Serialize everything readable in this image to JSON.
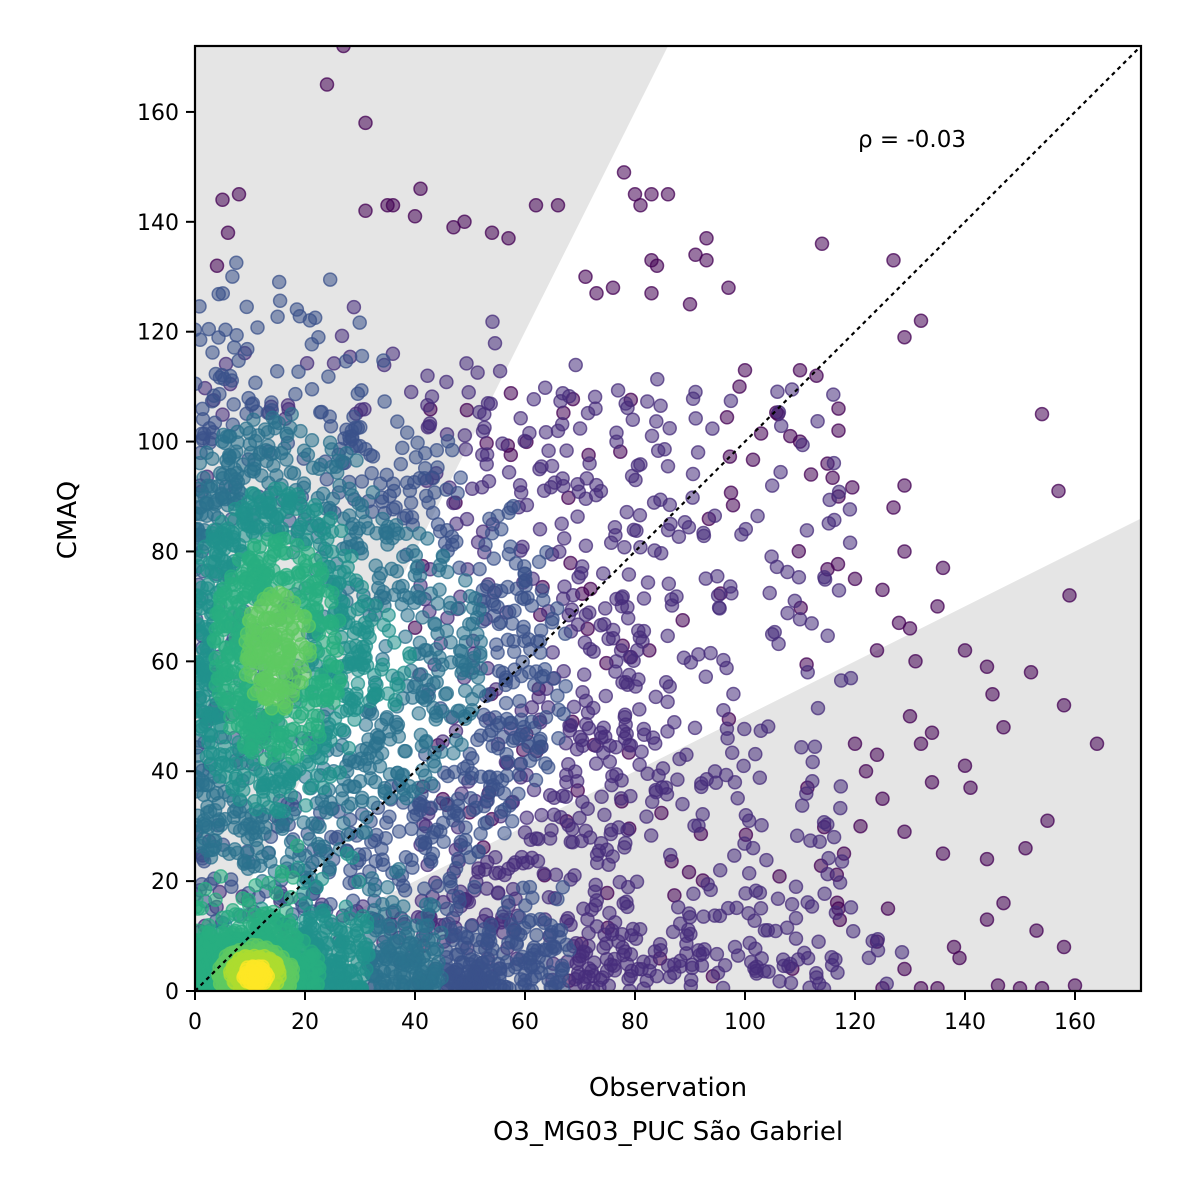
{
  "chart_data": {
    "type": "scatter",
    "xlabel": "Observation",
    "xlabel_sub": "O3_MG03_PUC São Gabriel",
    "ylabel": "CMAQ",
    "xlim": [
      0,
      172
    ],
    "ylim": [
      0,
      172
    ],
    "x_ticks": [
      0,
      20,
      40,
      60,
      80,
      100,
      120,
      140,
      160
    ],
    "y_ticks": [
      0,
      20,
      40,
      60,
      80,
      100,
      120,
      140,
      160
    ],
    "annotation": "ρ = -0.03",
    "reference_line": "y = x (dotted)",
    "shaded_regions": "outside factor-of-2 band (y > 2x and y < 0.5x)",
    "colormap": "viridis by point density",
    "colors": {
      "low_density": "#440154",
      "mid_low": "#3b528b",
      "mid": "#21918c",
      "mid_high": "#5ec962",
      "high_density": "#fde725",
      "shade": "#e5e5e5"
    },
    "outlier_points": [
      [
        27,
        172
      ],
      [
        24,
        165
      ],
      [
        31,
        158
      ],
      [
        31,
        142
      ],
      [
        35,
        143
      ],
      [
        36,
        143
      ],
      [
        41,
        146
      ],
      [
        40,
        141
      ],
      [
        8,
        145
      ],
      [
        5,
        144
      ],
      [
        6,
        138
      ],
      [
        4,
        132
      ],
      [
        47,
        139
      ],
      [
        49,
        140
      ],
      [
        54,
        138
      ],
      [
        57,
        137
      ],
      [
        62,
        143
      ],
      [
        66,
        143
      ],
      [
        78,
        149
      ],
      [
        80,
        145
      ],
      [
        83,
        145
      ],
      [
        86,
        145
      ],
      [
        81,
        143
      ],
      [
        93,
        137
      ],
      [
        91,
        134
      ],
      [
        93,
        133
      ],
      [
        83,
        133
      ],
      [
        84,
        132
      ],
      [
        76,
        128
      ],
      [
        71,
        130
      ],
      [
        73,
        127
      ],
      [
        97,
        128
      ],
      [
        83,
        127
      ],
      [
        90,
        125
      ],
      [
        114,
        136
      ],
      [
        127,
        133
      ],
      [
        132,
        122
      ],
      [
        129,
        119
      ],
      [
        110,
        113
      ],
      [
        113,
        112
      ],
      [
        100,
        113
      ],
      [
        99,
        110
      ],
      [
        117,
        106
      ],
      [
        117,
        102
      ],
      [
        115,
        96
      ],
      [
        106,
        105
      ],
      [
        110,
        100
      ],
      [
        112,
        94
      ],
      [
        117,
        90
      ],
      [
        120,
        75
      ],
      [
        125,
        73
      ],
      [
        129,
        92
      ],
      [
        127,
        88
      ],
      [
        129,
        80
      ],
      [
        124,
        62
      ],
      [
        128,
        67
      ],
      [
        130,
        66
      ],
      [
        136,
        77
      ],
      [
        135,
        70
      ],
      [
        140,
        62
      ],
      [
        144,
        59
      ],
      [
        152,
        58
      ],
      [
        145,
        54
      ],
      [
        147,
        48
      ],
      [
        158,
        52
      ],
      [
        154,
        105
      ],
      [
        157,
        91
      ],
      [
        159,
        72
      ],
      [
        164,
        45
      ],
      [
        155,
        31
      ],
      [
        151,
        26
      ],
      [
        147,
        16
      ],
      [
        144,
        13
      ],
      [
        144,
        24
      ],
      [
        141,
        37
      ],
      [
        140,
        41
      ],
      [
        136,
        25
      ],
      [
        134,
        38
      ],
      [
        129,
        29
      ],
      [
        132,
        45
      ],
      [
        131,
        60
      ],
      [
        130,
        50
      ],
      [
        134,
        47
      ],
      [
        124,
        43
      ],
      [
        120,
        45
      ],
      [
        125,
        35
      ],
      [
        122,
        40
      ],
      [
        121,
        30
      ],
      [
        118,
        25
      ],
      [
        117,
        15
      ],
      [
        126,
        15
      ],
      [
        124,
        9
      ],
      [
        129,
        4
      ],
      [
        138,
        8
      ],
      [
        139,
        6
      ],
      [
        153,
        11
      ],
      [
        158,
        8
      ],
      [
        160,
        1
      ],
      [
        146,
        1
      ],
      [
        150,
        0.5
      ],
      [
        154,
        0.5
      ],
      [
        125,
        0.5
      ],
      [
        132,
        0.5
      ],
      [
        135,
        0.5
      ]
    ]
  }
}
